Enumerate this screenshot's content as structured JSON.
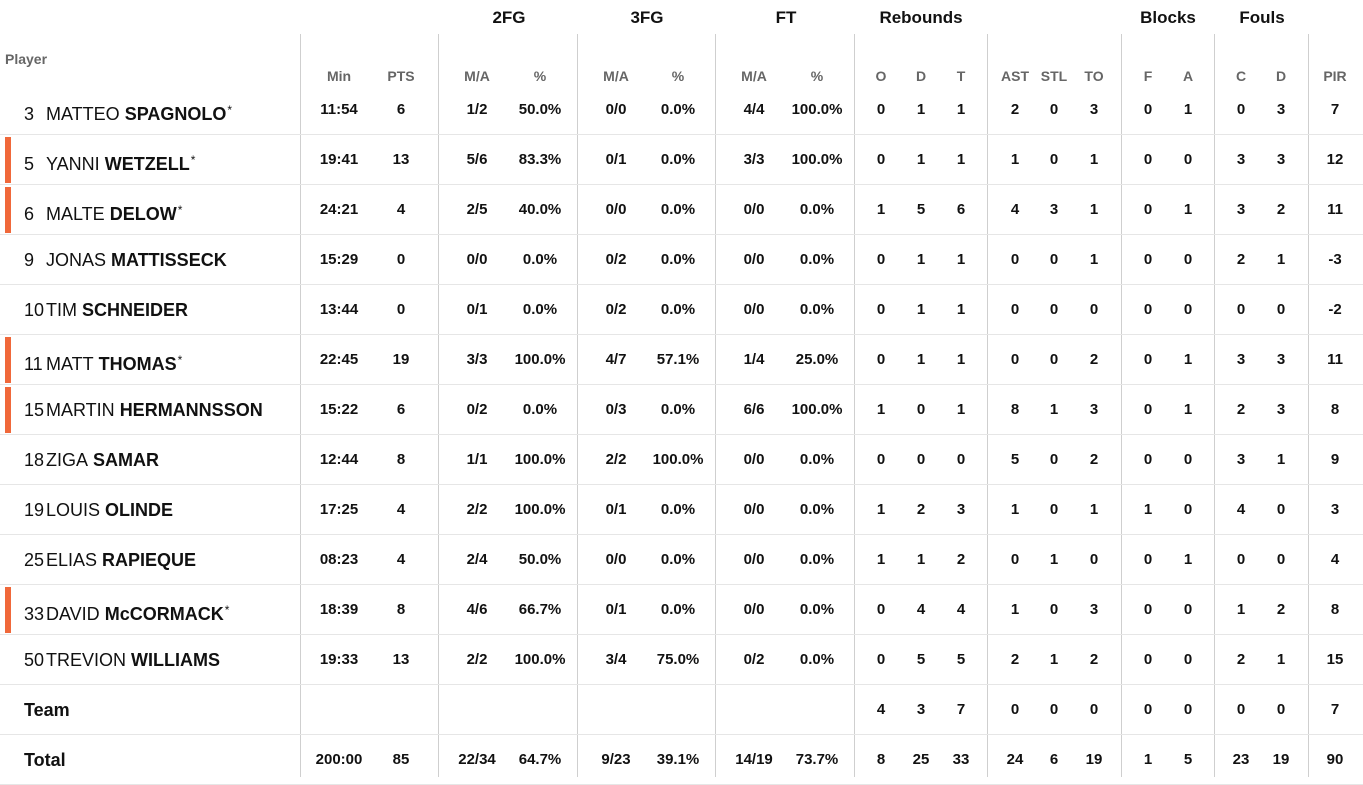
{
  "headers": {
    "player": "Player",
    "groups": [
      "2FG",
      "3FG",
      "FT",
      "Rebounds",
      "Blocks",
      "Fouls"
    ],
    "columns": [
      "Min",
      "PTS",
      "M/A",
      "%",
      "M/A",
      "%",
      "M/A",
      "%",
      "O",
      "D",
      "T",
      "AST",
      "STL",
      "TO",
      "F",
      "A",
      "C",
      "D",
      "PIR"
    ]
  },
  "players": [
    {
      "number": "3",
      "first": "MATTEO",
      "last": "SPAGNOLO",
      "starter": true,
      "highlight": false,
      "stats": [
        "11:54",
        "6",
        "1/2",
        "50.0%",
        "0/0",
        "0.0%",
        "4/4",
        "100.0%",
        "0",
        "1",
        "1",
        "2",
        "0",
        "3",
        "0",
        "1",
        "0",
        "3",
        "7"
      ]
    },
    {
      "number": "5",
      "first": "YANNI",
      "last": "WETZELL",
      "starter": true,
      "highlight": true,
      "stats": [
        "19:41",
        "13",
        "5/6",
        "83.3%",
        "0/1",
        "0.0%",
        "3/3",
        "100.0%",
        "0",
        "1",
        "1",
        "1",
        "0",
        "1",
        "0",
        "0",
        "3",
        "3",
        "12"
      ]
    },
    {
      "number": "6",
      "first": "MALTE",
      "last": "DELOW",
      "starter": true,
      "highlight": true,
      "stats": [
        "24:21",
        "4",
        "2/5",
        "40.0%",
        "0/0",
        "0.0%",
        "0/0",
        "0.0%",
        "1",
        "5",
        "6",
        "4",
        "3",
        "1",
        "0",
        "1",
        "3",
        "2",
        "11"
      ]
    },
    {
      "number": "9",
      "first": "JONAS",
      "last": "MATTISSECK",
      "starter": false,
      "highlight": false,
      "stats": [
        "15:29",
        "0",
        "0/0",
        "0.0%",
        "0/2",
        "0.0%",
        "0/0",
        "0.0%",
        "0",
        "1",
        "1",
        "0",
        "0",
        "1",
        "0",
        "0",
        "2",
        "1",
        "-3"
      ]
    },
    {
      "number": "10",
      "first": "TIM",
      "last": "SCHNEIDER",
      "starter": false,
      "highlight": false,
      "stats": [
        "13:44",
        "0",
        "0/1",
        "0.0%",
        "0/2",
        "0.0%",
        "0/0",
        "0.0%",
        "0",
        "1",
        "1",
        "0",
        "0",
        "0",
        "0",
        "0",
        "0",
        "0",
        "-2"
      ]
    },
    {
      "number": "11",
      "first": "MATT",
      "last": "THOMAS",
      "starter": true,
      "highlight": true,
      "stats": [
        "22:45",
        "19",
        "3/3",
        "100.0%",
        "4/7",
        "57.1%",
        "1/4",
        "25.0%",
        "0",
        "1",
        "1",
        "0",
        "0",
        "2",
        "0",
        "1",
        "3",
        "3",
        "11"
      ]
    },
    {
      "number": "15",
      "first": "MARTIN",
      "last": "HERMANNSSON",
      "starter": false,
      "highlight": true,
      "stats": [
        "15:22",
        "6",
        "0/2",
        "0.0%",
        "0/3",
        "0.0%",
        "6/6",
        "100.0%",
        "1",
        "0",
        "1",
        "8",
        "1",
        "3",
        "0",
        "1",
        "2",
        "3",
        "8"
      ]
    },
    {
      "number": "18",
      "first": "ZIGA",
      "last": "SAMAR",
      "starter": false,
      "highlight": false,
      "stats": [
        "12:44",
        "8",
        "1/1",
        "100.0%",
        "2/2",
        "100.0%",
        "0/0",
        "0.0%",
        "0",
        "0",
        "0",
        "5",
        "0",
        "2",
        "0",
        "0",
        "3",
        "1",
        "9"
      ]
    },
    {
      "number": "19",
      "first": "LOUIS",
      "last": "OLINDE",
      "starter": false,
      "highlight": false,
      "stats": [
        "17:25",
        "4",
        "2/2",
        "100.0%",
        "0/1",
        "0.0%",
        "0/0",
        "0.0%",
        "1",
        "2",
        "3",
        "1",
        "0",
        "1",
        "1",
        "0",
        "4",
        "0",
        "3"
      ]
    },
    {
      "number": "25",
      "first": "ELIAS",
      "last": "RAPIEQUE",
      "starter": false,
      "highlight": false,
      "stats": [
        "08:23",
        "4",
        "2/4",
        "50.0%",
        "0/0",
        "0.0%",
        "0/0",
        "0.0%",
        "1",
        "1",
        "2",
        "0",
        "1",
        "0",
        "0",
        "1",
        "0",
        "0",
        "4"
      ]
    },
    {
      "number": "33",
      "first": "DAVID",
      "last": "McCORMACK",
      "starter": true,
      "highlight": true,
      "stats": [
        "18:39",
        "8",
        "4/6",
        "66.7%",
        "0/1",
        "0.0%",
        "0/0",
        "0.0%",
        "0",
        "4",
        "4",
        "1",
        "0",
        "3",
        "0",
        "0",
        "1",
        "2",
        "8"
      ]
    },
    {
      "number": "50",
      "first": "TREVION",
      "last": "WILLIAMS",
      "starter": false,
      "highlight": false,
      "stats": [
        "19:33",
        "13",
        "2/2",
        "100.0%",
        "3/4",
        "75.0%",
        "0/2",
        "0.0%",
        "0",
        "5",
        "5",
        "2",
        "1",
        "2",
        "0",
        "0",
        "2",
        "1",
        "15"
      ]
    }
  ],
  "team": {
    "label": "Team",
    "stats": [
      "",
      "",
      "",
      "",
      "",
      "",
      "",
      "",
      "4",
      "3",
      "7",
      "0",
      "0",
      "0",
      "0",
      "0",
      "0",
      "0",
      "7"
    ]
  },
  "total": {
    "label": "Total",
    "stats": [
      "200:00",
      "85",
      "22/34",
      "64.7%",
      "9/23",
      "39.1%",
      "14/19",
      "73.7%",
      "8",
      "25",
      "33",
      "24",
      "6",
      "19",
      "1",
      "5",
      "23",
      "19",
      "90"
    ]
  },
  "starter_marker": "*",
  "colors": {
    "starter_bar": "#f0683a",
    "header_text": "#666666",
    "grid": "#cfcfcf"
  }
}
